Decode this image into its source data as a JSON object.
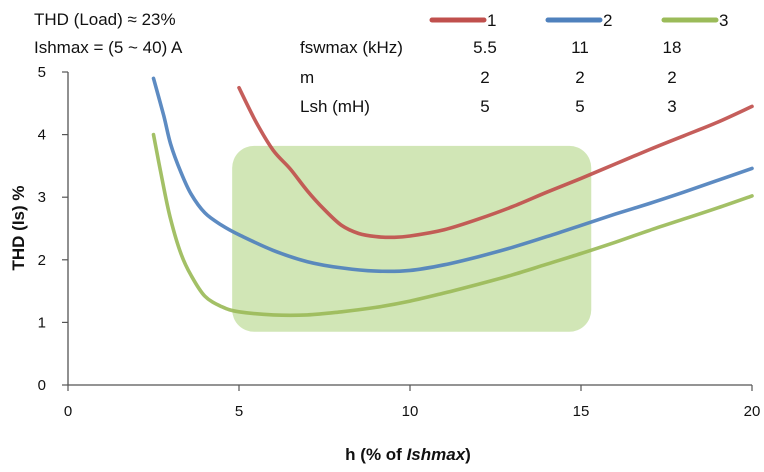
{
  "chart_data": {
    "type": "line",
    "title": "",
    "xlabel": "h (% of ",
    "xlabel_italic": "Ishmax",
    "xlabel_suffix": ")",
    "ylabel": "THD (Is) %",
    "xlim": [
      0,
      20
    ],
    "ylim": [
      0,
      5
    ],
    "xticks": [
      "0",
      "5",
      "10",
      "15",
      "20"
    ],
    "yticks": [
      "0",
      "1",
      "2",
      "3",
      "4",
      "5"
    ],
    "grid": false,
    "legend_position": "top-right",
    "annotations": {
      "thd_load": "THD (Load) ≈ 23%",
      "ishmax": "Ishmax = (5 ~ 40)  A"
    },
    "params_table": {
      "rows": [
        {
          "label": "fswmax (kHz)",
          "values": [
            "5.5",
            "11",
            "18"
          ]
        },
        {
          "label": "m",
          "values": [
            "2",
            "2",
            "2"
          ]
        },
        {
          "label": "Lsh (mH)",
          "values": [
            "5",
            "5",
            "3"
          ]
        }
      ]
    },
    "highlight_region": {
      "x": [
        4.8,
        15.3
      ],
      "y": [
        0.85,
        3.82
      ],
      "color": "#c6e0a4"
    },
    "series": [
      {
        "name": "1",
        "color": "#c0504d",
        "x": [
          5.0,
          5.5,
          6.0,
          6.5,
          7.0,
          7.5,
          8.0,
          8.5,
          9.0,
          9.5,
          10.0,
          11.0,
          12.0,
          13.0,
          14.0,
          15.0,
          16.0,
          17.0,
          18.0,
          19.0,
          20.0
        ],
        "y": [
          4.75,
          4.2,
          3.75,
          3.45,
          3.1,
          2.8,
          2.55,
          2.42,
          2.37,
          2.36,
          2.38,
          2.48,
          2.65,
          2.85,
          3.08,
          3.3,
          3.53,
          3.76,
          3.98,
          4.2,
          4.45
        ]
      },
      {
        "name": "2",
        "color": "#4f81bd",
        "x": [
          2.5,
          2.8,
          3.0,
          3.3,
          3.6,
          4.0,
          4.5,
          5.0,
          6.0,
          7.0,
          8.0,
          9.0,
          10.0,
          11.0,
          12.0,
          13.0,
          14.0,
          15.0,
          16.0,
          17.0,
          18.0,
          19.0,
          20.0
        ],
        "y": [
          4.9,
          4.3,
          3.85,
          3.4,
          3.05,
          2.75,
          2.55,
          2.4,
          2.15,
          1.97,
          1.87,
          1.82,
          1.83,
          1.92,
          2.05,
          2.2,
          2.37,
          2.55,
          2.73,
          2.9,
          3.08,
          3.27,
          3.46
        ]
      },
      {
        "name": "3",
        "color": "#9bbb59",
        "x": [
          2.5,
          2.8,
          3.0,
          3.3,
          3.6,
          4.0,
          4.5,
          5.0,
          6.0,
          7.0,
          8.0,
          9.0,
          10.0,
          11.0,
          12.0,
          13.0,
          14.0,
          15.0,
          16.0,
          17.0,
          18.0,
          19.0,
          20.0
        ],
        "y": [
          4.0,
          3.15,
          2.65,
          2.1,
          1.75,
          1.42,
          1.25,
          1.17,
          1.12,
          1.12,
          1.17,
          1.24,
          1.34,
          1.47,
          1.61,
          1.76,
          1.93,
          2.1,
          2.28,
          2.47,
          2.65,
          2.83,
          3.02
        ]
      }
    ]
  }
}
